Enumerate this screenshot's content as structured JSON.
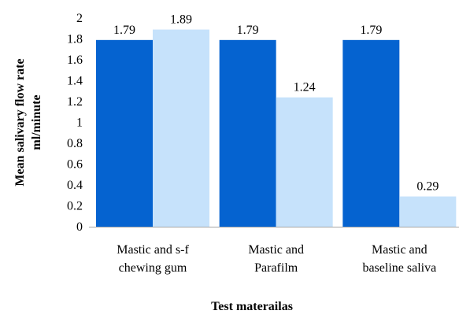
{
  "chart_data": {
    "type": "bar",
    "categories": [
      [
        "Mastic and s-f",
        "chewing gum"
      ],
      [
        "Mastic and",
        "Parafilm"
      ],
      [
        "Mastic and",
        "baseline saliva"
      ]
    ],
    "series": [
      {
        "values": [
          1.79,
          1.79,
          1.79
        ],
        "color": "#0563d0"
      },
      {
        "values": [
          1.89,
          1.24,
          0.29
        ],
        "color": "#c6e2fb"
      }
    ],
    "data_labels": [
      [
        "1.79",
        "1.79",
        "1.79"
      ],
      [
        "1.89",
        "1.24",
        "0.29"
      ]
    ],
    "xlabel": "Test materailas",
    "ylabel": [
      "Mean salivary flow rate",
      "ml/minute"
    ],
    "ylim": [
      0,
      2
    ],
    "yticks": [
      "0",
      "0.2",
      "0.4",
      "0.6",
      "0.8",
      "1",
      "1.2",
      "1.4",
      "1.6",
      "1.8",
      "2"
    ],
    "grid": false,
    "legend": "none"
  }
}
